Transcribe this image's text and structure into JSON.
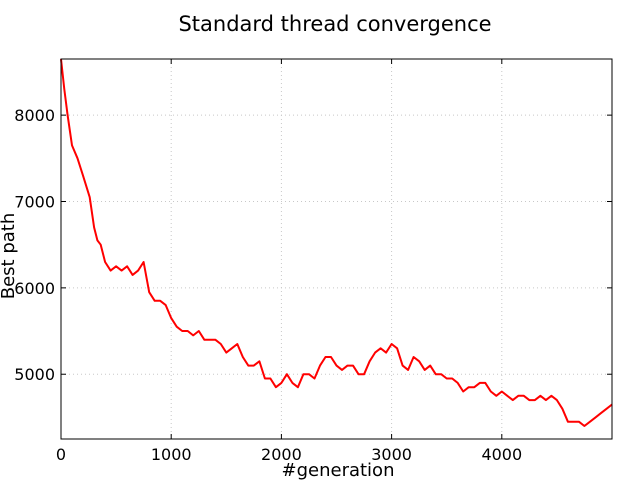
{
  "chart_data": {
    "type": "line",
    "title": "Standard thread convergence",
    "xlabel": "#generation",
    "ylabel": "Best path",
    "xlim": [
      0,
      5000
    ],
    "ylim": [
      4250,
      8650
    ],
    "xticks": [
      0,
      1000,
      2000,
      3000,
      4000
    ],
    "yticks": [
      5000,
      6000,
      7000,
      8000
    ],
    "grid": true,
    "series": [
      {
        "name": "best path",
        "color": "#ff0000",
        "x": [
          0,
          30,
          60,
          100,
          150,
          200,
          260,
          300,
          330,
          360,
          400,
          450,
          500,
          550,
          600,
          650,
          700,
          750,
          800,
          850,
          900,
          950,
          1000,
          1050,
          1100,
          1150,
          1200,
          1250,
          1300,
          1350,
          1400,
          1450,
          1500,
          1550,
          1600,
          1650,
          1700,
          1750,
          1800,
          1850,
          1900,
          1950,
          2000,
          2050,
          2100,
          2150,
          2200,
          2250,
          2300,
          2350,
          2400,
          2450,
          2500,
          2550,
          2600,
          2650,
          2700,
          2750,
          2800,
          2850,
          2900,
          2950,
          3000,
          3050,
          3100,
          3150,
          3200,
          3250,
          3300,
          3350,
          3400,
          3450,
          3500,
          3550,
          3600,
          3650,
          3700,
          3750,
          3800,
          3850,
          3900,
          3950,
          4000,
          4050,
          4100,
          4150,
          4200,
          4250,
          4300,
          4350,
          4400,
          4450,
          4500,
          4550,
          4600,
          4650,
          4700,
          4750,
          4800,
          4850,
          4900,
          4950,
          5000
        ],
        "values": [
          8650,
          8300,
          8000,
          7650,
          7500,
          7300,
          7050,
          6700,
          6550,
          6500,
          6300,
          6200,
          6250,
          6200,
          6250,
          6150,
          6200,
          6300,
          5950,
          5850,
          5850,
          5800,
          5650,
          5550,
          5500,
          5500,
          5450,
          5500,
          5400,
          5400,
          5400,
          5350,
          5250,
          5300,
          5350,
          5200,
          5100,
          5100,
          5150,
          4950,
          4950,
          4850,
          4900,
          5000,
          4900,
          4850,
          5000,
          5000,
          4950,
          5100,
          5200,
          5200,
          5100,
          5050,
          5100,
          5100,
          5000,
          5000,
          5150,
          5250,
          5300,
          5250,
          5350,
          5300,
          5100,
          5050,
          5200,
          5150,
          5050,
          5100,
          5000,
          5000,
          4950,
          4950,
          4900,
          4800,
          4850,
          4850,
          4900,
          4900,
          4800,
          4750,
          4800,
          4750,
          4700,
          4750,
          4750,
          4700,
          4700,
          4750,
          4700,
          4750,
          4700,
          4600,
          4450,
          4450,
          4450,
          4400,
          4450,
          4500,
          4550,
          4600,
          4650
        ]
      }
    ]
  }
}
